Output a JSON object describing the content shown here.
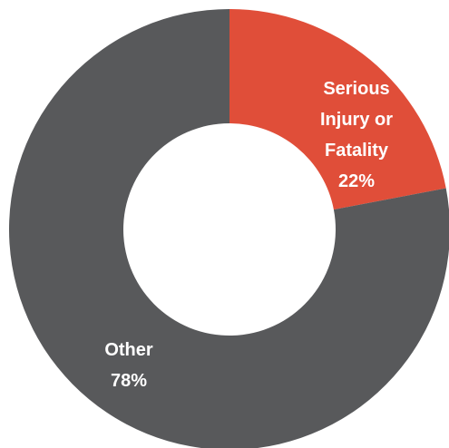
{
  "chart_data": {
    "type": "pie",
    "style": "donut",
    "title": "",
    "slices": [
      {
        "label_lines": [
          "Serious",
          "Injury or",
          "Fatality",
          "22%"
        ],
        "value": 22,
        "color": "#E04E39"
      },
      {
        "label_lines": [
          "Other",
          "78%"
        ],
        "value": 78,
        "color": "#58595B"
      }
    ],
    "start_angle_deg": 0,
    "direction": "clockwise",
    "legend": "none"
  }
}
